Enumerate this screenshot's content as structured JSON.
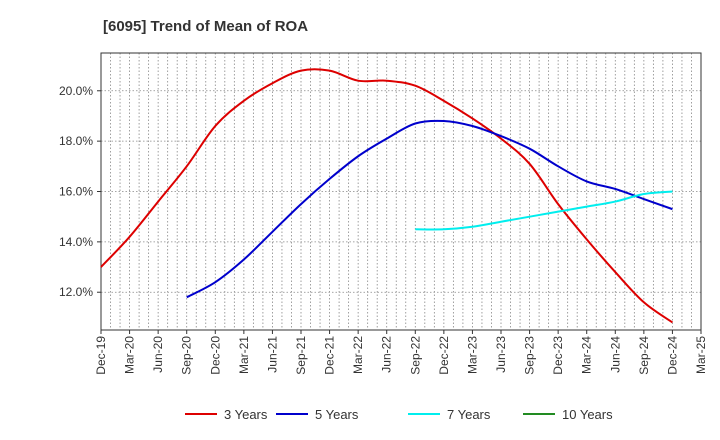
{
  "chart_data": {
    "type": "line",
    "title": "[6095]  Trend of Mean of ROA",
    "x_tick_labels": [
      "Dec-19",
      "Mar-20",
      "Jun-20",
      "Sep-20",
      "Dec-20",
      "Mar-21",
      "Jun-21",
      "Sep-21",
      "Dec-21",
      "Mar-22",
      "Jun-22",
      "Sep-22",
      "Dec-22",
      "Mar-23",
      "Jun-23",
      "Sep-23",
      "Dec-23",
      "Mar-24",
      "Jun-24",
      "Sep-24",
      "Dec-24",
      "Mar-25"
    ],
    "y_ticks": [
      12.0,
      14.0,
      16.0,
      18.0,
      20.0
    ],
    "y_tick_labels": [
      "12.0%",
      "14.0%",
      "16.0%",
      "18.0%",
      "20.0%"
    ],
    "ylim": [
      10.5,
      21.5
    ],
    "grid": true,
    "legend_position": "bottom",
    "series": [
      {
        "name": "3 Years",
        "color": "#dd0000",
        "x": [
          "Dec-19",
          "Mar-20",
          "Jun-20",
          "Sep-20",
          "Dec-20",
          "Mar-21",
          "Jun-21",
          "Sep-21",
          "Dec-21",
          "Mar-22",
          "Jun-22",
          "Sep-22",
          "Dec-22",
          "Mar-23",
          "Jun-23",
          "Sep-23",
          "Dec-23",
          "Mar-24",
          "Jun-24",
          "Sep-24",
          "Dec-24"
        ],
        "values": [
          13.0,
          14.2,
          15.6,
          17.0,
          18.6,
          19.6,
          20.3,
          20.8,
          20.8,
          20.4,
          20.4,
          20.2,
          19.6,
          18.9,
          18.1,
          17.1,
          15.5,
          14.1,
          12.8,
          11.6,
          10.8
        ]
      },
      {
        "name": "5 Years",
        "color": "#0000cc",
        "x": [
          "Sep-20",
          "Dec-20",
          "Mar-21",
          "Jun-21",
          "Sep-21",
          "Dec-21",
          "Mar-22",
          "Jun-22",
          "Sep-22",
          "Dec-22",
          "Mar-23",
          "Jun-23",
          "Sep-23",
          "Dec-23",
          "Mar-24",
          "Jun-24",
          "Sep-24",
          "Dec-24"
        ],
        "values": [
          11.8,
          12.4,
          13.3,
          14.4,
          15.5,
          16.5,
          17.4,
          18.1,
          18.7,
          18.8,
          18.6,
          18.2,
          17.7,
          17.0,
          16.4,
          16.1,
          15.7,
          15.3
        ]
      },
      {
        "name": "7 Years",
        "color": "#00eeee",
        "x": [
          "Sep-22",
          "Dec-22",
          "Mar-23",
          "Jun-23",
          "Sep-23",
          "Dec-23",
          "Mar-24",
          "Jun-24",
          "Sep-24",
          "Dec-24"
        ],
        "values": [
          14.5,
          14.5,
          14.6,
          14.8,
          15.0,
          15.2,
          15.4,
          15.6,
          15.9,
          16.0
        ]
      },
      {
        "name": "10 Years",
        "color": "#228B22",
        "x": [],
        "values": []
      }
    ]
  }
}
